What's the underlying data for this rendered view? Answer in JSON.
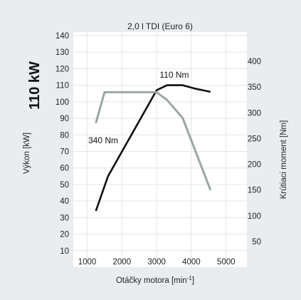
{
  "chart_data": {
    "type": "line",
    "title": "2,0 l TDI (Euro 6)",
    "power_badge": "110 kW",
    "xlabel": "Otáčky motora [min",
    "xlabel_sup": "-1",
    "xlabel_suffix": "]",
    "ylabel_left": "Výkon [kW]",
    "ylabel_right": "Krútiaci moment [Nm]",
    "xlim": [
      600,
      5600
    ],
    "x_ticks": [
      1000,
      2000,
      3000,
      4000,
      5000
    ],
    "ylim_left": [
      0,
      140
    ],
    "y_ticks_left": [
      10,
      20,
      30,
      40,
      50,
      60,
      70,
      80,
      90,
      100,
      110,
      120,
      130,
      140
    ],
    "ylim_right": [
      0,
      450
    ],
    "y_ticks_right": [
      50,
      100,
      150,
      200,
      250,
      300,
      350,
      400
    ],
    "grid": true,
    "series": [
      {
        "name": "110 Nm",
        "axis": "left",
        "color": "#111111",
        "x": [
          1250,
          1600,
          3000,
          3300,
          3750,
          4100,
          4550
        ],
        "values": [
          34,
          55,
          107,
          110,
          110,
          108,
          106
        ]
      },
      {
        "name": "340 Nm",
        "axis": "right",
        "color": "#9aa6a2",
        "x": [
          1250,
          1500,
          3000,
          3300,
          3750,
          4550
        ],
        "values": [
          280,
          340,
          340,
          325,
          290,
          150
        ]
      }
    ],
    "annotations": [
      {
        "text": "110 Nm",
        "series": "110 Nm"
      },
      {
        "text": "340 Nm",
        "series": "340 Nm"
      }
    ]
  }
}
